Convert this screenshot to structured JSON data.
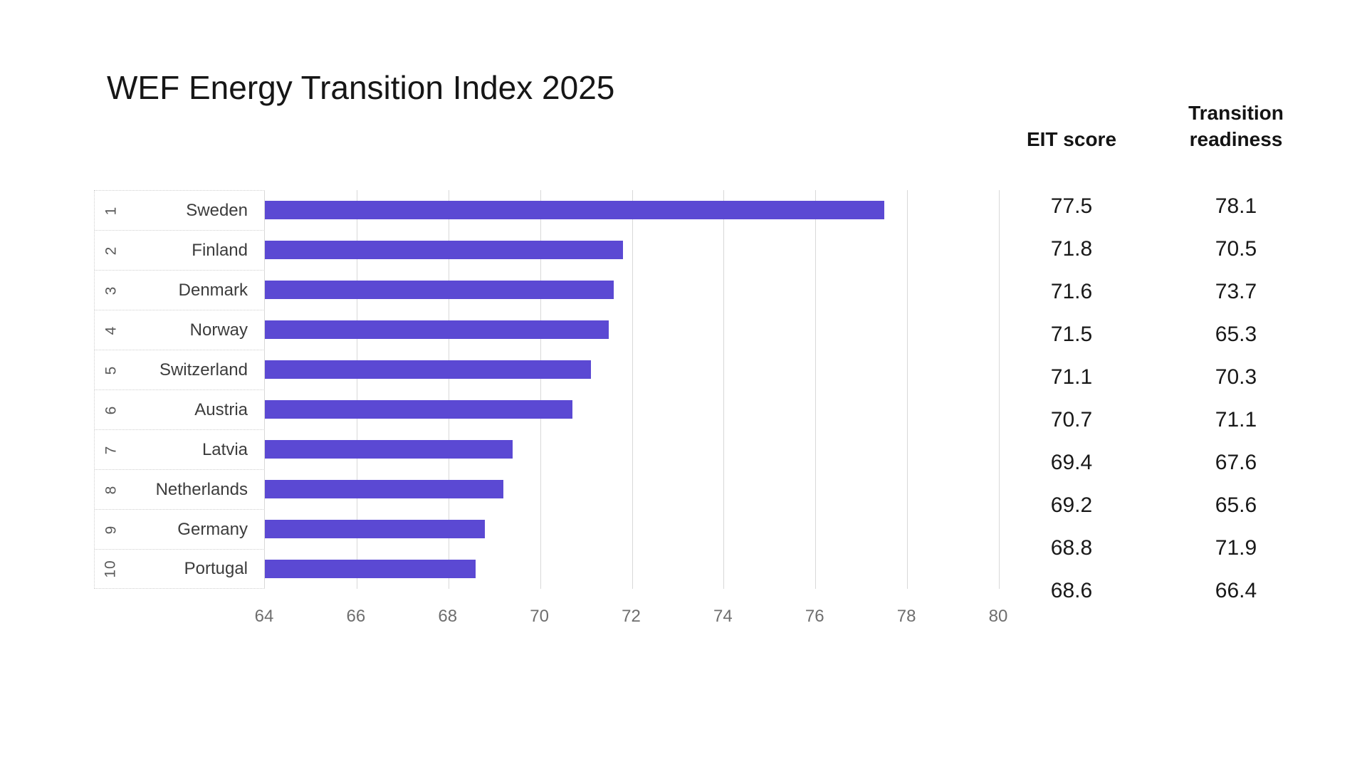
{
  "title": "WEF Energy Transition Index 2025",
  "column_headers": {
    "eit": "EIT score",
    "readiness_line1": "Transition",
    "readiness_line2": "readiness"
  },
  "colors": {
    "bar": "#5b49d3",
    "grid": "#d8d8d8",
    "row_border": "#cfcfcf",
    "title_text": "#161616",
    "country_text": "#3c3c3c",
    "rank_text": "#5a5a5a",
    "tick_text": "#6e6e6e",
    "value_text": "#191919"
  },
  "chart_data": {
    "type": "bar",
    "orientation": "horizontal",
    "title": "WEF Energy Transition Index 2025",
    "xlabel": "",
    "ylabel": "",
    "x_axis": {
      "min": 64,
      "max": 80,
      "ticks": [
        64,
        66,
        68,
        70,
        72,
        74,
        76,
        78,
        80
      ]
    },
    "grid": true,
    "legend_position": "none",
    "ranks": [
      "1",
      "2",
      "3",
      "4",
      "5",
      "6",
      "7",
      "8",
      "9",
      "10"
    ],
    "categories": [
      "Sweden",
      "Finland",
      "Denmark",
      "Norway",
      "Switzerland",
      "Austria",
      "Latvia",
      "Netherlands",
      "Germany",
      "Portugal"
    ],
    "bar_series_name": "EIT score",
    "series": [
      {
        "name": "EIT score",
        "values": [
          77.5,
          71.8,
          71.6,
          71.5,
          71.1,
          70.7,
          69.4,
          69.2,
          68.8,
          68.6
        ]
      },
      {
        "name": "Transition readiness",
        "values": [
          78.1,
          70.5,
          73.7,
          65.3,
          70.3,
          71.1,
          67.6,
          65.6,
          71.9,
          66.4
        ]
      }
    ]
  }
}
